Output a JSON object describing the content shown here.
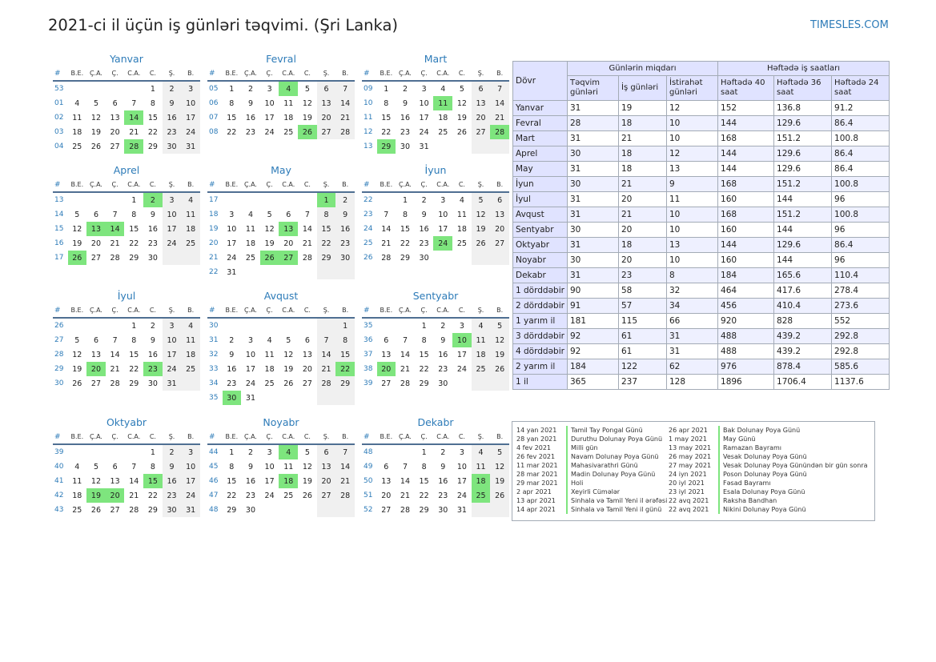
{
  "header": {
    "title": "2021-ci il üçün iş günləri təqvimi. (Şri Lanka)",
    "brand": "TIMESLES.COM"
  },
  "weekday_headers": [
    "#",
    "B.E.",
    "Ç.A.",
    "Ç.",
    "C.A.",
    "C.",
    "Ş.",
    "B."
  ],
  "months": [
    {
      "name": "Yanvar",
      "offset": 4,
      "days": 31,
      "start_week": 53,
      "holidays": [
        14,
        28
      ]
    },
    {
      "name": "Fevral",
      "offset": 0,
      "days": 28,
      "start_week": 5,
      "holidays": [
        4,
        26
      ]
    },
    {
      "name": "Mart",
      "offset": 0,
      "days": 31,
      "start_week": 9,
      "holidays": [
        11,
        28,
        29
      ]
    },
    {
      "name": "Aprel",
      "offset": 3,
      "days": 30,
      "start_week": 13,
      "holidays": [
        2,
        13,
        14,
        26
      ]
    },
    {
      "name": "May",
      "offset": 5,
      "days": 31,
      "start_week": 17,
      "holidays": [
        1,
        13,
        26,
        27
      ]
    },
    {
      "name": "İyun",
      "offset": 1,
      "days": 30,
      "start_week": 22,
      "holidays": [
        24
      ]
    },
    {
      "name": "İyul",
      "offset": 3,
      "days": 31,
      "start_week": 26,
      "holidays": [
        20,
        23
      ]
    },
    {
      "name": "Avqust",
      "offset": 6,
      "days": 31,
      "start_week": 30,
      "holidays": [
        22,
        30
      ]
    },
    {
      "name": "Sentyabr",
      "offset": 2,
      "days": 30,
      "start_week": 35,
      "holidays": [
        10,
        20
      ]
    },
    {
      "name": "Oktyabr",
      "offset": 4,
      "days": 31,
      "start_week": 39,
      "holidays": [
        15,
        19,
        20
      ]
    },
    {
      "name": "Noyabr",
      "offset": 0,
      "days": 30,
      "start_week": 44,
      "holidays": [
        4,
        18
      ]
    },
    {
      "name": "Dekabr",
      "offset": 2,
      "days": 31,
      "start_week": 48,
      "holidays": [
        18,
        25
      ]
    }
  ],
  "stats": {
    "period_label": "Dövr",
    "group1": "Günlərin miqdarı",
    "group2": "Həftədə iş saatları",
    "columns": [
      "Təqvim günləri",
      "İş günləri",
      "İstirahət günləri",
      "Həftədə 40 saat",
      "Həftədə 36 saat",
      "Həftədə 24 saat"
    ],
    "rows": [
      [
        "Yanvar",
        "31",
        "19",
        "12",
        "152",
        "136.8",
        "91.2"
      ],
      [
        "Fevral",
        "28",
        "18",
        "10",
        "144",
        "129.6",
        "86.4"
      ],
      [
        "Mart",
        "31",
        "21",
        "10",
        "168",
        "151.2",
        "100.8"
      ],
      [
        "Aprel",
        "30",
        "18",
        "12",
        "144",
        "129.6",
        "86.4"
      ],
      [
        "May",
        "31",
        "18",
        "13",
        "144",
        "129.6",
        "86.4"
      ],
      [
        "İyun",
        "30",
        "21",
        "9",
        "168",
        "151.2",
        "100.8"
      ],
      [
        "İyul",
        "31",
        "20",
        "11",
        "160",
        "144",
        "96"
      ],
      [
        "Avqust",
        "31",
        "21",
        "10",
        "168",
        "151.2",
        "100.8"
      ],
      [
        "Sentyabr",
        "30",
        "20",
        "10",
        "160",
        "144",
        "96"
      ],
      [
        "Oktyabr",
        "31",
        "18",
        "13",
        "144",
        "129.6",
        "86.4"
      ],
      [
        "Noyabr",
        "30",
        "20",
        "10",
        "160",
        "144",
        "96"
      ],
      [
        "Dekabr",
        "31",
        "23",
        "8",
        "184",
        "165.6",
        "110.4"
      ],
      [
        "1 dörddəbir",
        "90",
        "58",
        "32",
        "464",
        "417.6",
        "278.4"
      ],
      [
        "2 dörddəbir",
        "91",
        "57",
        "34",
        "456",
        "410.4",
        "273.6"
      ],
      [
        "1 yarım il",
        "181",
        "115",
        "66",
        "920",
        "828",
        "552"
      ],
      [
        "3 dörddəbir",
        "92",
        "61",
        "31",
        "488",
        "439.2",
        "292.8"
      ],
      [
        "4 dörddəbir",
        "92",
        "61",
        "31",
        "488",
        "439.2",
        "292.8"
      ],
      [
        "2 yarım il",
        "184",
        "122",
        "62",
        "976",
        "878.4",
        "585.6"
      ],
      [
        "1 il",
        "365",
        "237",
        "128",
        "1896",
        "1706.4",
        "1137.6"
      ]
    ]
  },
  "holidays_list": [
    [
      {
        "date": "14 yan 2021",
        "name": "Tamil Tay Pongal Günü"
      },
      {
        "date": "28 yan 2021",
        "name": "Duruthu Dolunay Poya Günü"
      },
      {
        "date": "4 fev 2021",
        "name": "Milli gün"
      },
      {
        "date": "26 fev 2021",
        "name": "Navam Dolunay Poya Günü"
      },
      {
        "date": "11 mar 2021",
        "name": "Mahasivarathri Günü"
      },
      {
        "date": "28 mar 2021",
        "name": "Madin Dolunay Poya Günü"
      },
      {
        "date": "29 mar 2021",
        "name": "Holi"
      },
      {
        "date": "2 apr 2021",
        "name": "Xeyirli Cümələr"
      },
      {
        "date": "13 apr 2021",
        "name": "Sinhala və Tamil Yeni il ərəfəsi"
      },
      {
        "date": "14 apr 2021",
        "name": "Sinhala və Tamil Yeni il günü"
      }
    ],
    [
      {
        "date": "26 apr 2021",
        "name": "Bak Dolunay Poya Günü"
      },
      {
        "date": "1 may 2021",
        "name": "May Günü"
      },
      {
        "date": "13 may 2021",
        "name": "Ramazan Bayramı"
      },
      {
        "date": "26 may 2021",
        "name": "Vesak Dolunay Poya Günü"
      },
      {
        "date": "27 may 2021",
        "name": "Vesak Dolunay Poya Günündən bir gün sonra"
      },
      {
        "date": "24 iyn 2021",
        "name": "Poson Dolunay Poya Günü"
      },
      {
        "date": "20 iyl 2021",
        "name": "Fəsad Bayramı"
      },
      {
        "date": "23 iyl 2021",
        "name": "Esala Dolunay Poya Günü"
      },
      {
        "date": "22 avq 2021",
        "name": "Raksha Bandhan"
      },
      {
        "date": "22 avq 2021",
        "name": "Nikini Dolunay Poya Günü"
      }
    ]
  ],
  "colors": {
    "accent": "#2d7bb8",
    "holiday": "#7ee57e",
    "weekend": "#f0f0f0",
    "table_header": "#e0e3ff",
    "rule": "#4f6f92"
  }
}
